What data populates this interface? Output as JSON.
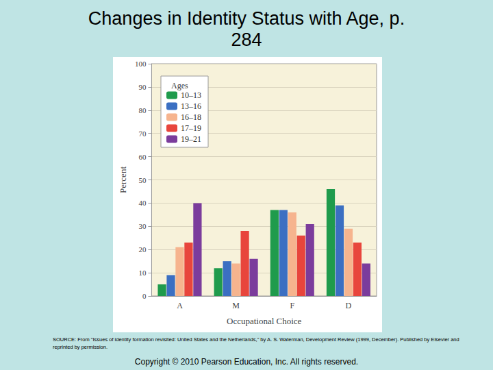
{
  "chart_data": {
    "type": "bar",
    "title": "Changes in Identity Status with Age, p. 284",
    "x_label": "Occupational Choice",
    "y_label": "Percent",
    "legend_title": "Ages",
    "annotations": [
      "SOURCE: From \"Issues of identity formation revisited: United States and the Netherlands,\" by A. S. Waterman, Development Review (1999, December). Published by Elsevier and reprinted by permission.",
      "Copyright © 2010 Pearson Education, Inc. All rights reserved."
    ],
    "categories": [
      "A",
      "M",
      "F",
      "D"
    ],
    "series": [
      {
        "name": "10–13",
        "color": "#1f9b4c",
        "values": [
          5,
          12,
          37,
          46
        ]
      },
      {
        "name": "13–16",
        "color": "#3b6fc2",
        "values": [
          9,
          15,
          37,
          39
        ]
      },
      {
        "name": "16–18",
        "color": "#f6b48e",
        "values": [
          21,
          14,
          36,
          29
        ]
      },
      {
        "name": "17–19",
        "color": "#e8453c",
        "values": [
          23,
          28,
          26,
          23
        ]
      },
      {
        "name": "19–21",
        "color": "#7b3c9c",
        "values": [
          40,
          16,
          31,
          14
        ]
      }
    ],
    "ylim": [
      0,
      100
    ],
    "yticks": [
      0,
      10,
      20,
      30,
      40,
      50,
      60,
      70,
      80,
      90,
      100
    ],
    "grid": true,
    "legend": "upper left"
  }
}
